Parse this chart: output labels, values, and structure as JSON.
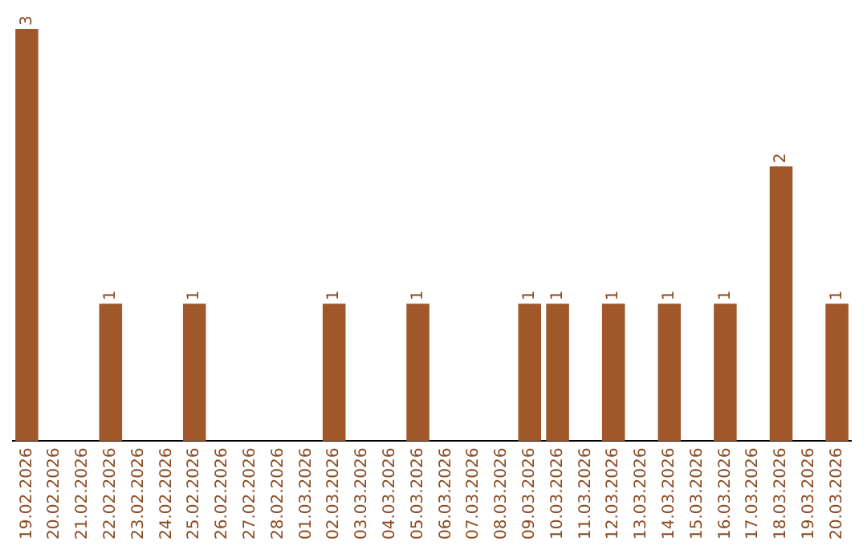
{
  "chart_data": {
    "type": "bar",
    "categories": [
      "19.02.2026",
      "20.02.2026",
      "21.02.2026",
      "22.02.2026",
      "23.02.2026",
      "24.02.2026",
      "25.02.2026",
      "26.02.2026",
      "27.02.2026",
      "28.02.2026",
      "01.03.2026",
      "02.03.2026",
      "03.03.2026",
      "04.03.2026",
      "05.03.2026",
      "06.03.2026",
      "07.03.2026",
      "08.03.2026",
      "09.03.2026",
      "10.03.2026",
      "11.03.2026",
      "12.03.2026",
      "13.03.2026",
      "14.03.2026",
      "15.03.2026",
      "16.03.2026",
      "17.03.2026",
      "18.03.2026",
      "19.03.2026",
      "20.03.2026"
    ],
    "values": [
      3,
      0,
      0,
      1,
      0,
      0,
      1,
      0,
      0,
      0,
      0,
      1,
      0,
      0,
      1,
      0,
      0,
      0,
      1,
      1,
      0,
      1,
      0,
      1,
      0,
      1,
      0,
      2,
      0,
      1
    ],
    "value_labels": [
      "3",
      null,
      null,
      "1",
      null,
      null,
      "1",
      null,
      null,
      null,
      null,
      "1",
      null,
      null,
      "1",
      null,
      null,
      null,
      "1",
      "1",
      null,
      "1",
      null,
      "1",
      null,
      "1",
      null,
      "2",
      null,
      "1"
    ],
    "color": "#a0582a",
    "grid": false,
    "legend": false,
    "tick_labels": "x"
  }
}
